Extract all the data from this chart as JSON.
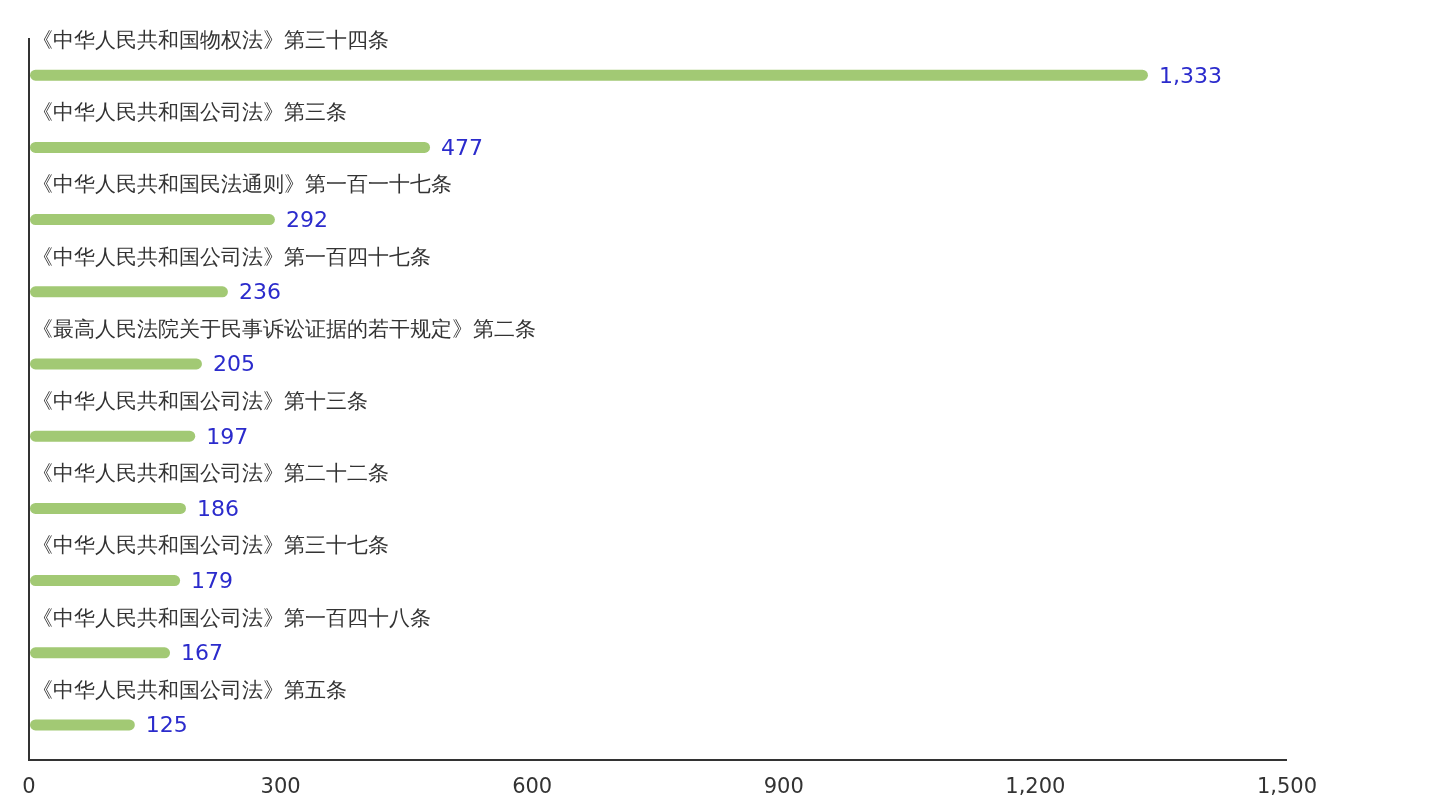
{
  "chart_data": {
    "type": "bar",
    "orientation": "horizontal",
    "categories": [
      "《中华人民共和国物权法》第三十四条",
      "《中华人民共和国公司法》第三条",
      "《中华人民共和国民法通则》第一百一十七条",
      "《中华人民共和国公司法》第一百四十七条",
      "《最高人民法院关于民事诉讼证据的若干规定》第二条",
      "《中华人民共和国公司法》第十三条",
      "《中华人民共和国公司法》第二十二条",
      "《中华人民共和国公司法》第三十七条",
      "《中华人民共和国公司法》第一百四十八条",
      "《中华人民共和国公司法》第五条"
    ],
    "values": [
      1333,
      477,
      292,
      236,
      205,
      197,
      186,
      179,
      167,
      125
    ],
    "value_labels": [
      "1,333",
      "477",
      "292",
      "236",
      "205",
      "197",
      "186",
      "179",
      "167",
      "125"
    ],
    "color": "#a2c974",
    "xlim": [
      0,
      1500
    ],
    "xticks": [
      0,
      300,
      600,
      900,
      {
        "value": 1200,
        "label": "1,200"
      },
      {
        "value": 1500,
        "label": "1,500"
      }
    ]
  }
}
